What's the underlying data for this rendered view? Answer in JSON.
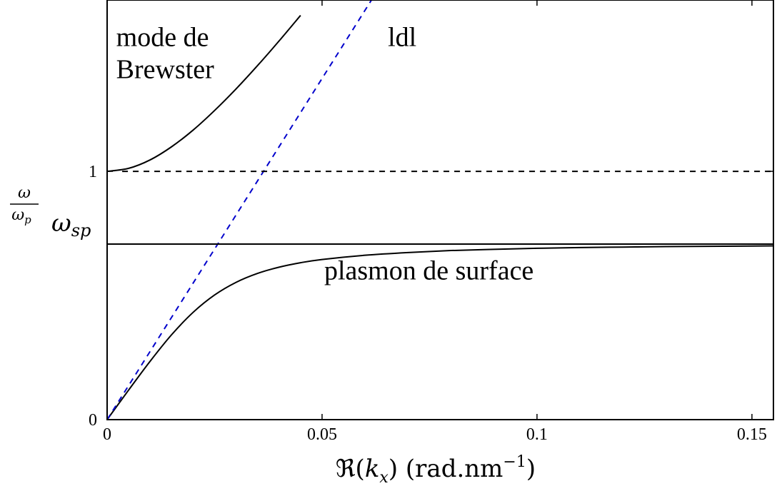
{
  "chart_data": {
    "type": "line",
    "title": "",
    "xlabel": {
      "prefix": "ℜ(",
      "var": "k",
      "sub": "x",
      "suffix": ") (rad.nm",
      "sup": "−1",
      "close": ")"
    },
    "ylabel": {
      "num": "ω",
      "den": "ω",
      "den_sub": "p"
    },
    "xlim": [
      0,
      0.155
    ],
    "ylim": [
      0,
      1.69
    ],
    "grid": false,
    "x_ticks": [
      {
        "value": 0,
        "label": "0"
      },
      {
        "value": 0.05,
        "label": "0.05"
      },
      {
        "value": 0.1,
        "label": "0.1"
      },
      {
        "value": 0.15,
        "label": "0.15"
      }
    ],
    "y_ticks": [
      {
        "value": 0,
        "label": "0"
      },
      {
        "value": 1,
        "label": "1"
      }
    ],
    "y_special_tick": {
      "value": 0.7071,
      "symbol": "ω",
      "sub": "sp"
    },
    "series": [
      {
        "role": "brewster-mode",
        "color": "#000000",
        "style": "solid",
        "x": [
          0,
          0.005,
          0.01,
          0.015,
          0.02,
          0.025,
          0.03,
          0.035,
          0.04,
          0.045
        ],
        "y": [
          1.0,
          1.012,
          1.046,
          1.099,
          1.166,
          1.245,
          1.332,
          1.426,
          1.525,
          1.628
        ]
      },
      {
        "role": "surface-plasmon",
        "color": "#000000",
        "style": "solid",
        "x": [
          0,
          0.005,
          0.01,
          0.015,
          0.02,
          0.025,
          0.03,
          0.035,
          0.04,
          0.045,
          0.05,
          0.06,
          0.07,
          0.08,
          0.09,
          0.1,
          0.11,
          0.12,
          0.13,
          0.14,
          0.15,
          0.155
        ],
        "y": [
          0,
          0.119,
          0.235,
          0.342,
          0.432,
          0.502,
          0.553,
          0.589,
          0.614,
          0.632,
          0.645,
          0.662,
          0.673,
          0.681,
          0.686,
          0.69,
          0.693,
          0.695,
          0.697,
          0.698,
          0.699,
          0.7
        ]
      },
      {
        "role": "light-line",
        "color": "#0000cc",
        "style": "dashed",
        "x": [
          0,
          0.0615
        ],
        "y": [
          0,
          1.69
        ]
      },
      {
        "role": "plasma-frequency-line",
        "color": "#000000",
        "style": "dashed",
        "x": [
          0.0035,
          0.155
        ],
        "y": [
          1,
          1
        ]
      },
      {
        "role": "surface-plasmon-asymptote",
        "color": "#000000",
        "style": "solid",
        "x": [
          0,
          0.155
        ],
        "y": [
          0.7071,
          0.7071
        ]
      }
    ],
    "annotations": [
      {
        "key": "brewster_line1",
        "text": "mode de",
        "x": 0.0021,
        "y": 1.505
      },
      {
        "key": "brewster_line2",
        "text": "Brewster",
        "x": 0.0021,
        "y": 1.375
      },
      {
        "key": "ldl",
        "text": "ldl",
        "x": 0.0653,
        "y": 1.505
      },
      {
        "key": "plasmon",
        "text": "plasmon de surface",
        "x": 0.0505,
        "y": 0.565
      }
    ]
  }
}
